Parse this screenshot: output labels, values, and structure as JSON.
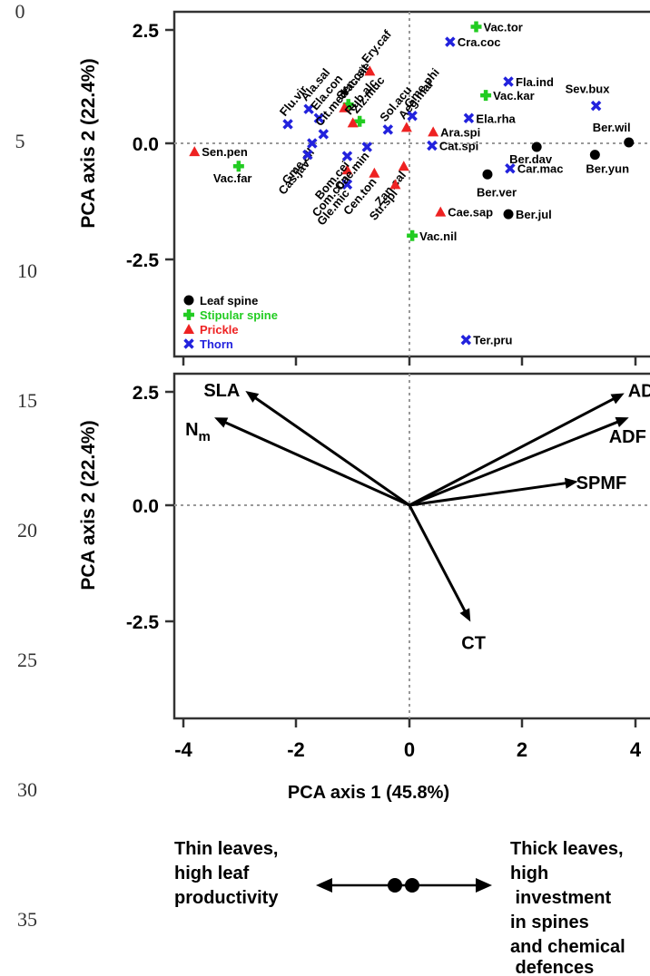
{
  "chart_data": [
    {
      "type": "scatter",
      "title": "",
      "xlabel": "",
      "ylabel": "PCA axis 2 (22.4%)",
      "xlim": [
        -4.2,
        4.2
      ],
      "ylim": [
        -4.5,
        2.8
      ],
      "yticks": [
        "2.5",
        "0.0",
        "-2.5"
      ],
      "grid": "dotted reference lines at x=0 and y=0",
      "legend_position": "bottom-left",
      "legend": [
        {
          "label": "Leaf spine",
          "color": "#000000",
          "symbol": "circle"
        },
        {
          "label": "Stipular spine",
          "color": "#22cc22",
          "symbol": "cross"
        },
        {
          "label": "Prickle",
          "color": "#ee2222",
          "symbol": "triangle"
        },
        {
          "label": "Thorn",
          "color": "#2222dd",
          "symbol": "x"
        }
      ],
      "series": [
        {
          "name": "Leaf spine",
          "points": [
            {
              "label": "Ber.wil",
              "x": 3.88,
              "y": 0.02
            },
            {
              "label": "Ber.dav",
              "x": 2.25,
              "y": -0.08
            },
            {
              "label": "Ber.yun",
              "x": 3.28,
              "y": -0.25
            },
            {
              "label": "Ber.ver",
              "x": 1.38,
              "y": -0.68
            },
            {
              "label": "Ber.jul",
              "x": 1.75,
              "y": -1.55
            }
          ]
        },
        {
          "name": "Stipular spine",
          "points": [
            {
              "label": "Vac.tor",
              "x": 1.18,
              "y": 2.55
            },
            {
              "label": "Vac.kar",
              "x": 1.35,
              "y": 1.05
            },
            {
              "label": "Vac.far",
              "x": -3.02,
              "y": -0.5
            },
            {
              "label": "Vac.sie",
              "x": -1.08,
              "y": 0.85
            },
            {
              "label": "Ziz.muc",
              "x": -0.88,
              "y": 0.48
            },
            {
              "label": "Vac.nil",
              "x": 0.05,
              "y": -2.02
            }
          ]
        },
        {
          "name": "Prickle",
          "points": [
            {
              "label": "Sen.pen",
              "x": -3.8,
              "y": -0.18
            },
            {
              "label": "Ery.caf",
              "x": -0.7,
              "y": 1.58
            },
            {
              "label": "Sen.cat",
              "x": -1.15,
              "y": 0.78
            },
            {
              "label": "Rub.alc",
              "x": -1.0,
              "y": 0.45
            },
            {
              "label": "Aeg.mar",
              "x": -0.05,
              "y": 0.35
            },
            {
              "label": "Ara.spi",
              "x": 0.42,
              "y": 0.25
            },
            {
              "label": "Com.con",
              "x": -1.1,
              "y": -0.58
            },
            {
              "label": "Cen.ton",
              "x": -0.62,
              "y": -0.65
            },
            {
              "label": "Zan.cal",
              "x": -0.1,
              "y": -0.5
            },
            {
              "label": "Str.spi",
              "x": -0.25,
              "y": -0.9
            },
            {
              "label": "Cae.sap",
              "x": 0.55,
              "y": -1.5
            }
          ]
        },
        {
          "name": "Thorn",
          "points": [
            {
              "label": "Cra.coc",
              "x": 0.72,
              "y": 2.22
            },
            {
              "label": "Fla.ind",
              "x": 1.75,
              "y": 1.35
            },
            {
              "label": "Sev.bux",
              "x": 3.3,
              "y": 0.82
            },
            {
              "label": "Ela.rha",
              "x": 1.05,
              "y": 0.55
            },
            {
              "label": "Gme.phi",
              "x": 0.05,
              "y": 0.6
            },
            {
              "label": "Sol.acu",
              "x": -0.38,
              "y": 0.3
            },
            {
              "label": "Cat.spi",
              "x": 0.4,
              "y": -0.05
            },
            {
              "label": "Car.mac",
              "x": 1.78,
              "y": -0.55
            },
            {
              "label": "Flu.vir",
              "x": -2.15,
              "y": 0.42
            },
            {
              "label": "Ala.sal",
              "x": -1.78,
              "y": 0.75
            },
            {
              "label": "Ela.con",
              "x": -1.6,
              "y": 0.55
            },
            {
              "label": "Cit.med",
              "x": -1.52,
              "y": 0.2
            },
            {
              "label": "Gme.ell",
              "x": -1.72,
              "y": 0.0
            },
            {
              "label": "Cas.jav",
              "x": -1.8,
              "y": -0.25
            },
            {
              "label": "Bom.cei",
              "x": -1.1,
              "y": -0.28
            },
            {
              "label": "Gle.mic",
              "x": -1.1,
              "y": -0.9
            },
            {
              "label": "Cae.min",
              "x": -0.75,
              "y": -0.08
            },
            {
              "label": "Ter.pru",
              "x": 1.0,
              "y": -4.3
            }
          ]
        }
      ]
    },
    {
      "type": "biplot",
      "title": "",
      "xlabel": "PCA axis 1 (45.8%)",
      "ylabel": "PCA axis 2 (22.4%)",
      "xlim": [
        -4.2,
        4.2
      ],
      "ylim": [
        -4.5,
        2.8
      ],
      "xticks": [
        "-4",
        "-2",
        "0",
        "2",
        "4"
      ],
      "yticks": [
        "2.5",
        "0.0",
        "-2.5"
      ],
      "grid": "dotted reference lines at x=0 and y=0",
      "vectors": [
        {
          "label": "SLA",
          "x": -2.9,
          "y": 2.5
        },
        {
          "label": "N",
          "subscript": "m",
          "x": -3.45,
          "y": 1.92
        },
        {
          "label": "ADL",
          "x": 3.8,
          "y": 2.45
        },
        {
          "label": "ADF",
          "x": 3.88,
          "y": 1.92
        },
        {
          "label": "SPMF",
          "x": 2.98,
          "y": 0.52
        },
        {
          "label": "CT",
          "x": 1.08,
          "y": -2.55
        }
      ]
    }
  ],
  "left_axis_numbers": [
    "0",
    "5",
    "10",
    "15",
    "20",
    "25",
    "30",
    "35"
  ],
  "annotation": {
    "left_text": [
      "Thin leaves,",
      "high leaf",
      "productivity"
    ],
    "right_text": [
      "Thick leaves,",
      "high",
      " investment",
      "in spines",
      "and chemical",
      " defences"
    ]
  }
}
